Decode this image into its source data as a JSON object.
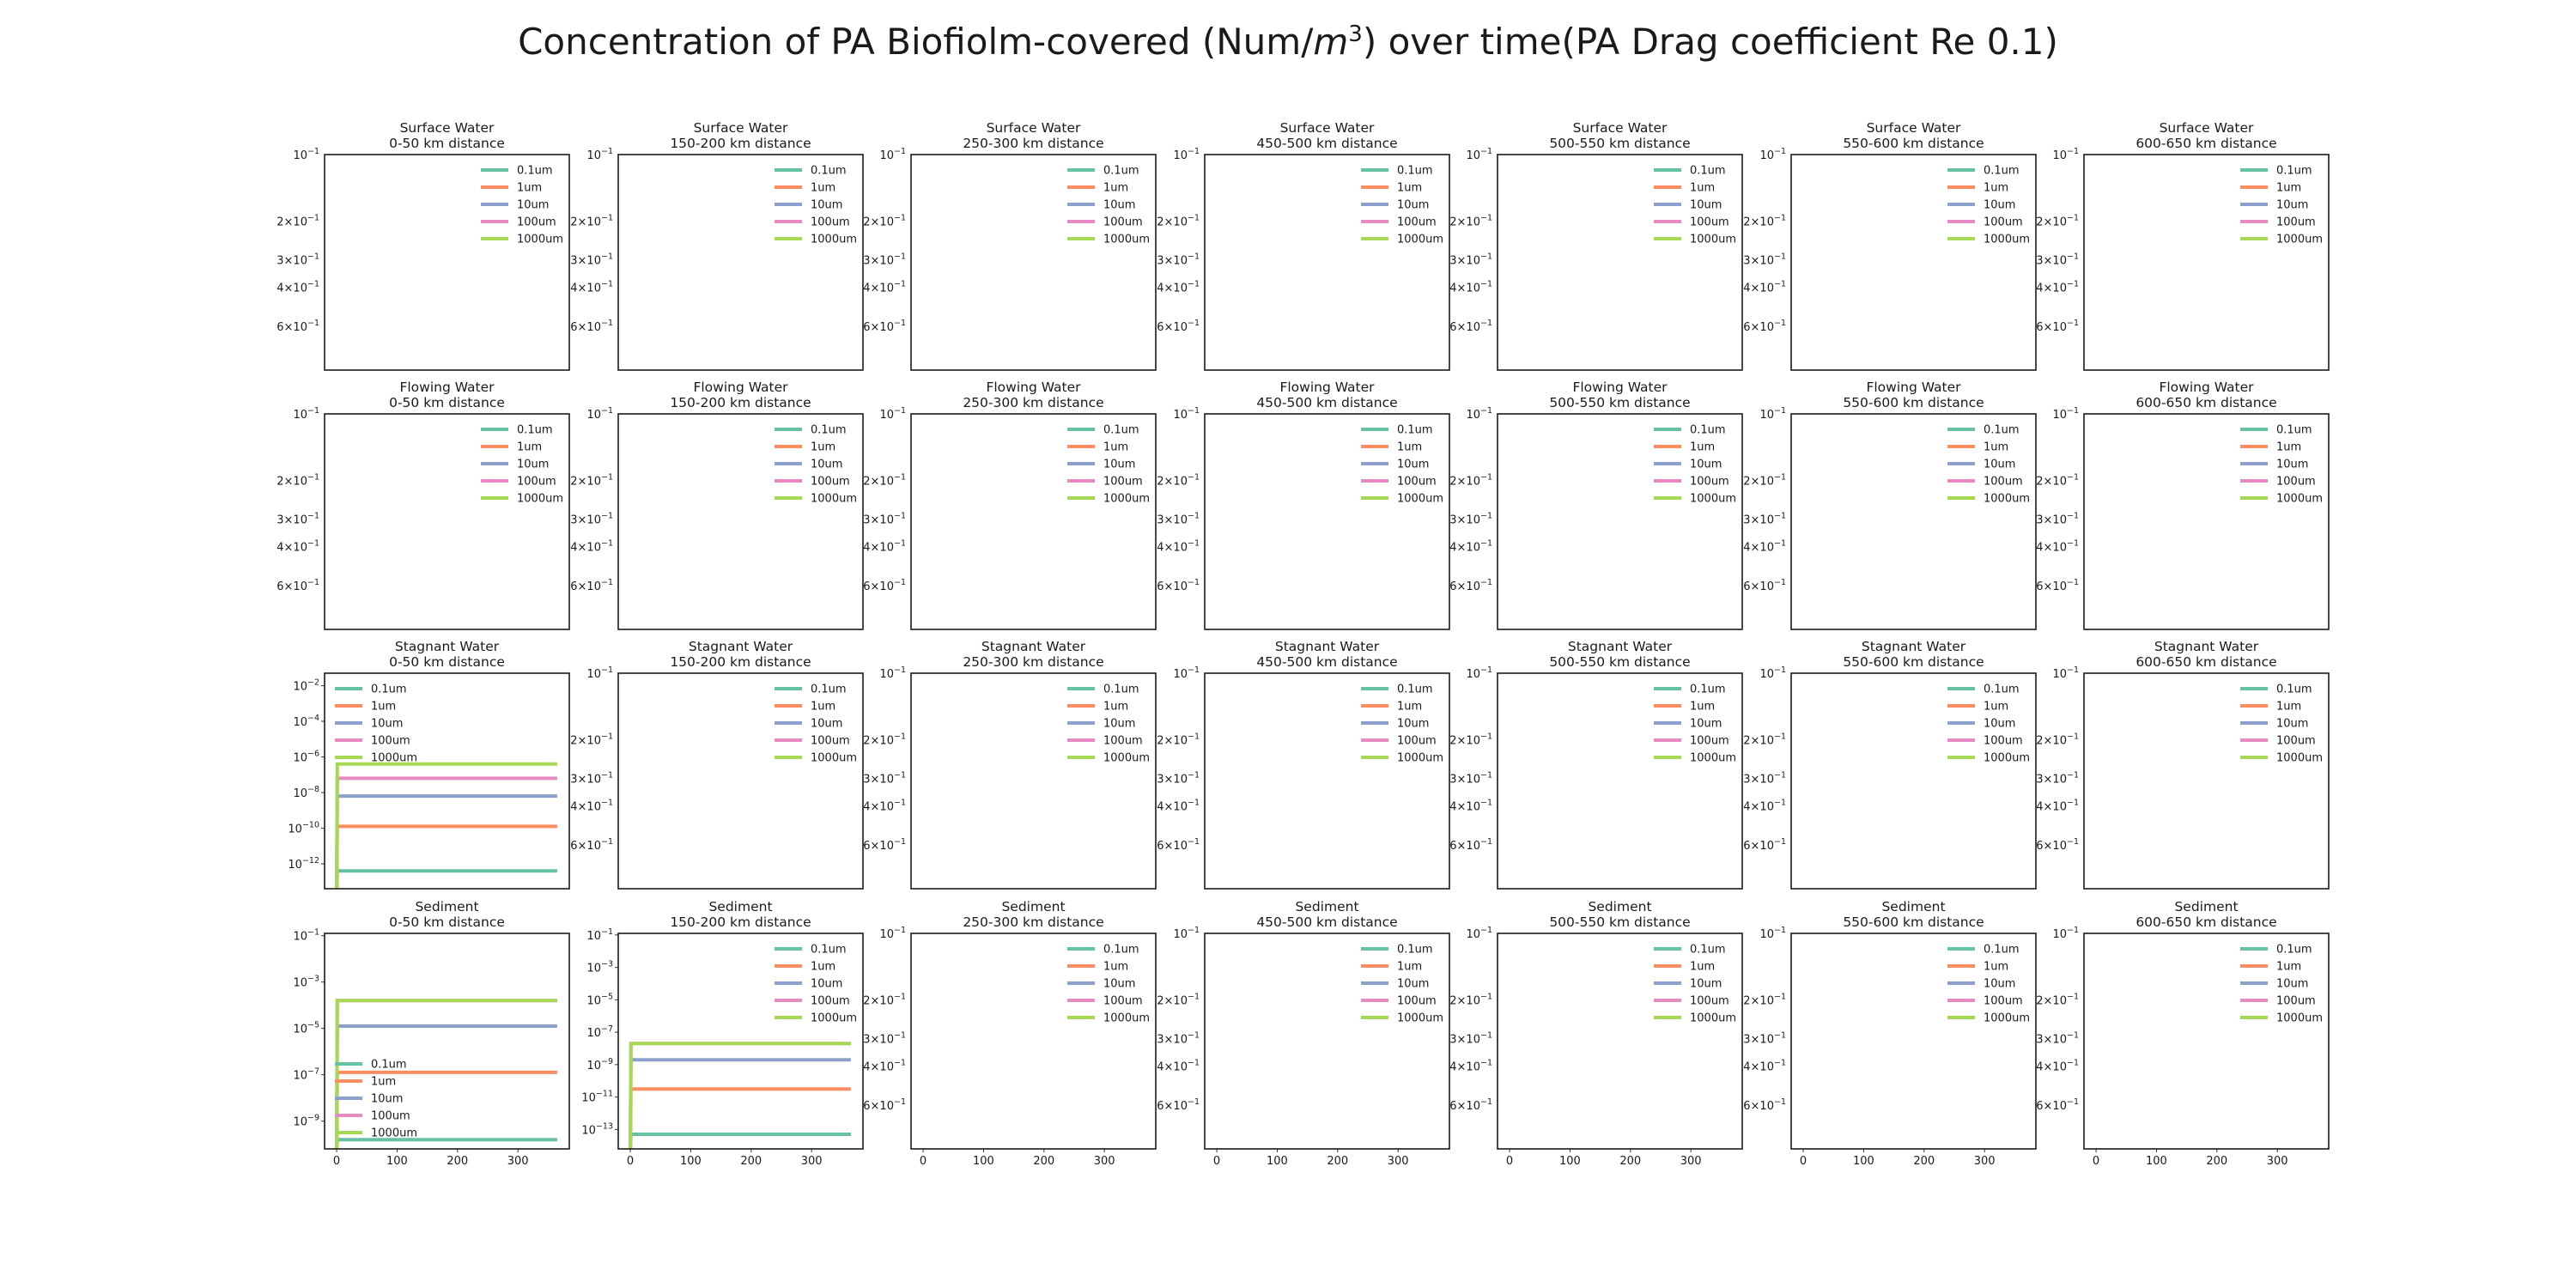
{
  "figure": {
    "title_prefix": "Concentration of PA Biofiolm-covered (Num/",
    "title_m": "m",
    "title_exp": "3",
    "title_suffix": ") over time(PA Drag coefficient Re 0.1)"
  },
  "colors": {
    "0.1um": "#66c2a5",
    "1um": "#fc8d62",
    "10um": "#8da0cb",
    "100um": "#e78ac3",
    "1000um": "#a6d854"
  },
  "chart_data": {
    "type": "line",
    "compartments": [
      "Surface Water",
      "Flowing Water",
      "Stagnant Water",
      "Sediment"
    ],
    "distances": [
      "0-50 km distance",
      "150-200 km distance",
      "250-300 km distance",
      "450-500 km distance",
      "500-550 km distance",
      "550-600 km distance",
      "600-650 km distance"
    ],
    "legend_labels": [
      "0.1um",
      "1um",
      "10um",
      "100um",
      "1000um"
    ],
    "xlim": [
      -20,
      385
    ],
    "x_ticks": [
      0,
      100,
      200,
      300
    ],
    "empty_y_ticks": [
      {
        "value": 0.1,
        "mant": "10",
        "exp": "−1"
      },
      {
        "value": 0.2,
        "mant": "2×10",
        "exp": "−1"
      },
      {
        "value": 0.3,
        "mant": "3×10",
        "exp": "−1"
      },
      {
        "value": 0.4,
        "mant": "4×10",
        "exp": "−1"
      },
      {
        "value": 0.6,
        "mant": "6×10",
        "exp": "−1"
      }
    ],
    "empty_ylim": [
      0.1,
      0.95
    ],
    "empty_y_inverted": true,
    "data_panels": [
      {
        "row": 2,
        "col": 0,
        "ylim_log10": [
          -13.4,
          -1.3
        ],
        "y_ticks": [
          {
            "value_log10": -2,
            "mant": "10",
            "exp": "−2"
          },
          {
            "value_log10": -4,
            "mant": "10",
            "exp": "−4"
          },
          {
            "value_log10": -6,
            "mant": "10",
            "exp": "−6"
          },
          {
            "value_log10": -8,
            "mant": "10",
            "exp": "−8"
          },
          {
            "value_log10": -10,
            "mant": "10",
            "exp": "−10"
          },
          {
            "value_log10": -12,
            "mant": "10",
            "exp": "−12"
          }
        ],
        "legend_position": "upper left",
        "series": [
          {
            "name": "0.1um",
            "x": [
              0,
              1,
              365
            ],
            "log10_y": [
              -13.4,
              -12.4,
              -12.4
            ]
          },
          {
            "name": "1um",
            "x": [
              0,
              1,
              365
            ],
            "log10_y": [
              -13.4,
              -9.9,
              -9.9
            ]
          },
          {
            "name": "10um",
            "x": [
              0,
              1,
              365
            ],
            "log10_y": [
              -13.4,
              -8.2,
              -8.2
            ]
          },
          {
            "name": "100um",
            "x": [
              0,
              1,
              365
            ],
            "log10_y": [
              -13.4,
              -7.2,
              -7.2
            ]
          },
          {
            "name": "1000um",
            "x": [
              0,
              1,
              365
            ],
            "log10_y": [
              -13.4,
              -6.4,
              -6.4
            ]
          }
        ]
      },
      {
        "row": 3,
        "col": 0,
        "ylim_log10": [
          -10.2,
          -0.9
        ],
        "y_ticks": [
          {
            "value_log10": -1,
            "mant": "10",
            "exp": "−1"
          },
          {
            "value_log10": -3,
            "mant": "10",
            "exp": "−3"
          },
          {
            "value_log10": -5,
            "mant": "10",
            "exp": "−5"
          },
          {
            "value_log10": -7,
            "mant": "10",
            "exp": "−7"
          },
          {
            "value_log10": -9,
            "mant": "10",
            "exp": "−9"
          }
        ],
        "legend_position": "lower left",
        "series": [
          {
            "name": "0.1um",
            "x": [
              0,
              1,
              365
            ],
            "log10_y": [
              -10.2,
              -9.8,
              -9.8
            ]
          },
          {
            "name": "1um",
            "x": [
              0,
              1,
              365
            ],
            "log10_y": [
              -10.2,
              -6.9,
              -6.9
            ]
          },
          {
            "name": "10um",
            "x": [
              0,
              1,
              365
            ],
            "log10_y": [
              -10.2,
              -4.9,
              -4.9
            ]
          },
          {
            "name": "100um",
            "x": [
              0,
              1,
              365
            ],
            "log10_y": [
              -10.2,
              -3.8,
              -3.8
            ]
          },
          {
            "name": "1000um",
            "x": [
              0,
              1,
              365
            ],
            "log10_y": [
              -10.2,
              -3.8,
              -3.8
            ]
          }
        ]
      },
      {
        "row": 3,
        "col": 1,
        "ylim_log10": [
          -14.2,
          -0.9
        ],
        "y_ticks": [
          {
            "value_log10": -1,
            "mant": "10",
            "exp": "−1"
          },
          {
            "value_log10": -3,
            "mant": "10",
            "exp": "−3"
          },
          {
            "value_log10": -5,
            "mant": "10",
            "exp": "−5"
          },
          {
            "value_log10": -7,
            "mant": "10",
            "exp": "−7"
          },
          {
            "value_log10": -9,
            "mant": "10",
            "exp": "−9"
          },
          {
            "value_log10": -11,
            "mant": "10",
            "exp": "−11"
          },
          {
            "value_log10": -13,
            "mant": "10",
            "exp": "−13"
          }
        ],
        "legend_position": "upper right",
        "series": [
          {
            "name": "0.1um",
            "x": [
              0,
              1,
              365
            ],
            "log10_y": [
              -14.2,
              -13.3,
              -13.3
            ]
          },
          {
            "name": "1um",
            "x": [
              0,
              1,
              365
            ],
            "log10_y": [
              -14.2,
              -10.5,
              -10.5
            ]
          },
          {
            "name": "10um",
            "x": [
              0,
              1,
              365
            ],
            "log10_y": [
              -14.2,
              -8.7,
              -8.7
            ]
          },
          {
            "name": "100um",
            "x": [
              0,
              1,
              365
            ],
            "log10_y": [
              -14.2,
              -7.7,
              -7.7
            ]
          },
          {
            "name": "1000um",
            "x": [
              0,
              1,
              365
            ],
            "log10_y": [
              -14.2,
              -7.7,
              -7.7
            ]
          }
        ]
      }
    ]
  }
}
